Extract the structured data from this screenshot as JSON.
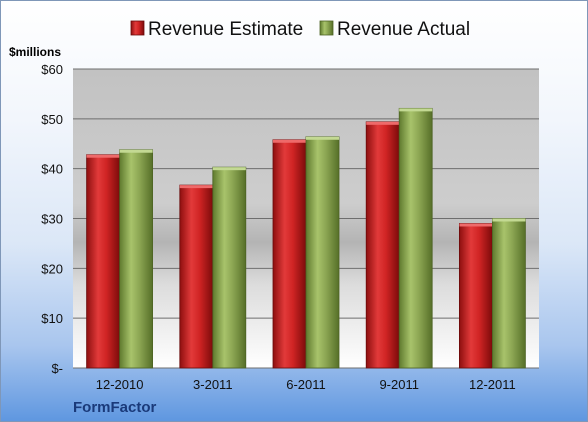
{
  "company": "FormFactor",
  "unit_label": "$millions",
  "chart_data": {
    "type": "bar",
    "categories": [
      "12-2010",
      "3-2011",
      "6-2011",
      "9-2011",
      "12-2011"
    ],
    "series": [
      {
        "name": "Revenue Estimate",
        "color": "#c81e1e",
        "values": [
          42.8,
          36.7,
          45.8,
          49.4,
          29.0
        ]
      },
      {
        "name": "Revenue Actual",
        "color": "#8aa64e",
        "values": [
          43.8,
          40.3,
          46.4,
          52.1,
          30.0
        ]
      }
    ],
    "ylim": [
      0,
      60
    ],
    "yticks": [
      0,
      10,
      20,
      30,
      40,
      50,
      60
    ],
    "ytick_labels": [
      "$-",
      "$10",
      "$20",
      "$30",
      "$40",
      "$50",
      "$60"
    ],
    "legend_position": "top",
    "grid": true
  }
}
